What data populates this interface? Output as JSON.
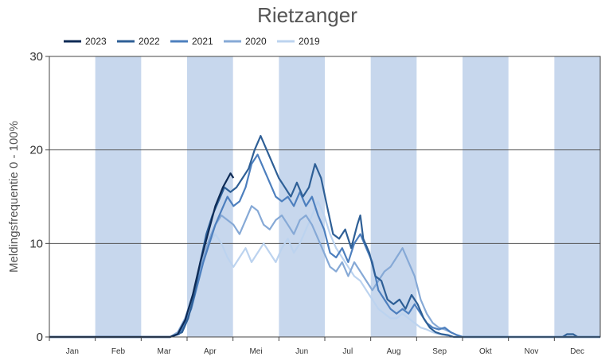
{
  "chart_data": {
    "type": "line",
    "title": "Rietzanger",
    "ylabel": "Meldingsfrequentie 0 - 100%",
    "xlabel": "",
    "ylim": [
      0,
      30
    ],
    "yticks": [
      0,
      10,
      20,
      30
    ],
    "xlim": [
      0,
      365
    ],
    "months": [
      "Jan",
      "Feb",
      "Mar",
      "Apr",
      "Mei",
      "Jun",
      "Jul",
      "Aug",
      "Sep",
      "Okt",
      "Nov",
      "Dec"
    ],
    "month_band_color": "#c7d7ed",
    "legend_placement": "top-left",
    "grid": true,
    "series": [
      {
        "name": "2023",
        "color": "#0d2a55",
        "points": [
          [
            0,
            0
          ],
          [
            55,
            0
          ],
          [
            80,
            0
          ],
          [
            85,
            0.3
          ],
          [
            90,
            1.8
          ],
          [
            95,
            4.5
          ],
          [
            100,
            8
          ],
          [
            105,
            11
          ],
          [
            110,
            14
          ],
          [
            115,
            16
          ],
          [
            120,
            17.5
          ],
          [
            122,
            17
          ]
        ]
      },
      {
        "name": "2022",
        "color": "#2e5f96",
        "points": [
          [
            0,
            0
          ],
          [
            60,
            0
          ],
          [
            80,
            0
          ],
          [
            88,
            0.5
          ],
          [
            92,
            2
          ],
          [
            96,
            4.5
          ],
          [
            100,
            8
          ],
          [
            104,
            11
          ],
          [
            108,
            13
          ],
          [
            112,
            14.5
          ],
          [
            116,
            16
          ],
          [
            120,
            15.5
          ],
          [
            124,
            16
          ],
          [
            128,
            17
          ],
          [
            132,
            18
          ],
          [
            136,
            20
          ],
          [
            140,
            21.5
          ],
          [
            144,
            20
          ],
          [
            148,
            18.5
          ],
          [
            152,
            17
          ],
          [
            156,
            16
          ],
          [
            160,
            15
          ],
          [
            164,
            16.5
          ],
          [
            168,
            15
          ],
          [
            172,
            16
          ],
          [
            176,
            18.5
          ],
          [
            180,
            17
          ],
          [
            184,
            14
          ],
          [
            188,
            11
          ],
          [
            192,
            10.5
          ],
          [
            196,
            11.5
          ],
          [
            200,
            9.5
          ],
          [
            204,
            12
          ],
          [
            206,
            13
          ],
          [
            208,
            10.5
          ],
          [
            212,
            9
          ],
          [
            216,
            6.5
          ],
          [
            220,
            6
          ],
          [
            224,
            4
          ],
          [
            228,
            3.5
          ],
          [
            232,
            4
          ],
          [
            236,
            3
          ],
          [
            240,
            4.5
          ],
          [
            244,
            3.5
          ],
          [
            248,
            2
          ],
          [
            252,
            1
          ],
          [
            256,
            0.5
          ],
          [
            260,
            0.3
          ],
          [
            264,
            0.2
          ],
          [
            268,
            0
          ],
          [
            365,
            0
          ]
        ]
      },
      {
        "name": "2021",
        "color": "#4d7fbe",
        "points": [
          [
            0,
            0
          ],
          [
            60,
            0
          ],
          [
            80,
            0
          ],
          [
            86,
            0.3
          ],
          [
            90,
            1.5
          ],
          [
            94,
            3
          ],
          [
            98,
            5.5
          ],
          [
            102,
            8
          ],
          [
            106,
            10
          ],
          [
            110,
            12
          ],
          [
            114,
            13.5
          ],
          [
            118,
            15
          ],
          [
            122,
            14
          ],
          [
            126,
            14.5
          ],
          [
            130,
            16
          ],
          [
            134,
            18.5
          ],
          [
            138,
            19.5
          ],
          [
            142,
            18
          ],
          [
            146,
            16.5
          ],
          [
            150,
            15
          ],
          [
            154,
            14.5
          ],
          [
            158,
            15
          ],
          [
            162,
            14
          ],
          [
            166,
            15.5
          ],
          [
            170,
            14
          ],
          [
            174,
            15
          ],
          [
            178,
            13
          ],
          [
            182,
            11.5
          ],
          [
            186,
            9
          ],
          [
            190,
            8.5
          ],
          [
            194,
            9.5
          ],
          [
            198,
            8
          ],
          [
            202,
            10
          ],
          [
            206,
            11
          ],
          [
            210,
            9.5
          ],
          [
            214,
            8
          ],
          [
            218,
            5
          ],
          [
            222,
            4
          ],
          [
            226,
            3
          ],
          [
            230,
            2.5
          ],
          [
            234,
            3
          ],
          [
            238,
            2.5
          ],
          [
            242,
            3.5
          ],
          [
            246,
            2.5
          ],
          [
            250,
            1.5
          ],
          [
            254,
            1
          ],
          [
            258,
            0.8
          ],
          [
            262,
            1
          ],
          [
            266,
            0.5
          ],
          [
            270,
            0.2
          ],
          [
            274,
            0
          ],
          [
            365,
            0
          ]
        ]
      },
      {
        "name": "2020",
        "color": "#86a9d6",
        "points": [
          [
            0,
            0
          ],
          [
            60,
            0
          ],
          [
            80,
            0
          ],
          [
            85,
            0.5
          ],
          [
            90,
            2
          ],
          [
            94,
            4
          ],
          [
            98,
            6
          ],
          [
            102,
            8.5
          ],
          [
            106,
            10.5
          ],
          [
            110,
            12
          ],
          [
            114,
            13
          ],
          [
            118,
            12.5
          ],
          [
            122,
            12
          ],
          [
            126,
            11
          ],
          [
            130,
            12.5
          ],
          [
            134,
            14
          ],
          [
            138,
            13.5
          ],
          [
            142,
            12
          ],
          [
            146,
            11.5
          ],
          [
            150,
            12.5
          ],
          [
            154,
            13
          ],
          [
            158,
            12
          ],
          [
            162,
            11
          ],
          [
            166,
            12.5
          ],
          [
            170,
            13
          ],
          [
            174,
            12
          ],
          [
            178,
            10.5
          ],
          [
            182,
            9
          ],
          [
            186,
            7.5
          ],
          [
            190,
            7
          ],
          [
            194,
            8
          ],
          [
            198,
            6.5
          ],
          [
            202,
            8
          ],
          [
            206,
            7
          ],
          [
            210,
            6
          ],
          [
            214,
            5
          ],
          [
            218,
            6
          ],
          [
            222,
            7
          ],
          [
            226,
            7.5
          ],
          [
            230,
            8.5
          ],
          [
            234,
            9.5
          ],
          [
            238,
            8
          ],
          [
            242,
            6.5
          ],
          [
            246,
            4
          ],
          [
            250,
            2.5
          ],
          [
            254,
            1.5
          ],
          [
            258,
            1
          ],
          [
            262,
            0.8
          ],
          [
            266,
            0.5
          ],
          [
            270,
            0.2
          ],
          [
            274,
            0
          ],
          [
            365,
            0
          ]
        ]
      },
      {
        "name": "2019",
        "color": "#bcd3ef",
        "points": [
          [
            0,
            0
          ],
          [
            60,
            0
          ],
          [
            80,
            0
          ],
          [
            86,
            0.3
          ],
          [
            90,
            1.5
          ],
          [
            94,
            3.5
          ],
          [
            98,
            5.5
          ],
          [
            102,
            8
          ],
          [
            106,
            10
          ],
          [
            110,
            11
          ],
          [
            114,
            10
          ],
          [
            118,
            8.5
          ],
          [
            122,
            7.5
          ],
          [
            126,
            8.5
          ],
          [
            130,
            9.5
          ],
          [
            134,
            8
          ],
          [
            138,
            9
          ],
          [
            142,
            10
          ],
          [
            146,
            9
          ],
          [
            150,
            8
          ],
          [
            154,
            9.5
          ],
          [
            158,
            10.5
          ],
          [
            162,
            9
          ],
          [
            166,
            10
          ],
          [
            170,
            11.5
          ],
          [
            174,
            13
          ],
          [
            178,
            14.5
          ],
          [
            182,
            13
          ],
          [
            186,
            11
          ],
          [
            190,
            9.5
          ],
          [
            194,
            8.5
          ],
          [
            198,
            7.5
          ],
          [
            202,
            6.5
          ],
          [
            206,
            6
          ],
          [
            210,
            5
          ],
          [
            214,
            4
          ],
          [
            218,
            3
          ],
          [
            222,
            2.5
          ],
          [
            226,
            2
          ],
          [
            230,
            2
          ],
          [
            234,
            2.5
          ],
          [
            238,
            2
          ],
          [
            242,
            1.5
          ],
          [
            246,
            1
          ],
          [
            250,
            0.8
          ],
          [
            254,
            0.5
          ],
          [
            258,
            0.3
          ],
          [
            262,
            0.2
          ],
          [
            266,
            0
          ],
          [
            365,
            0
          ]
        ]
      }
    ],
    "extra_marks": [
      {
        "series": "2022",
        "points": [
          [
            340,
            0
          ],
          [
            343,
            0.3
          ],
          [
            347,
            0.3
          ],
          [
            350,
            0
          ]
        ]
      }
    ]
  }
}
